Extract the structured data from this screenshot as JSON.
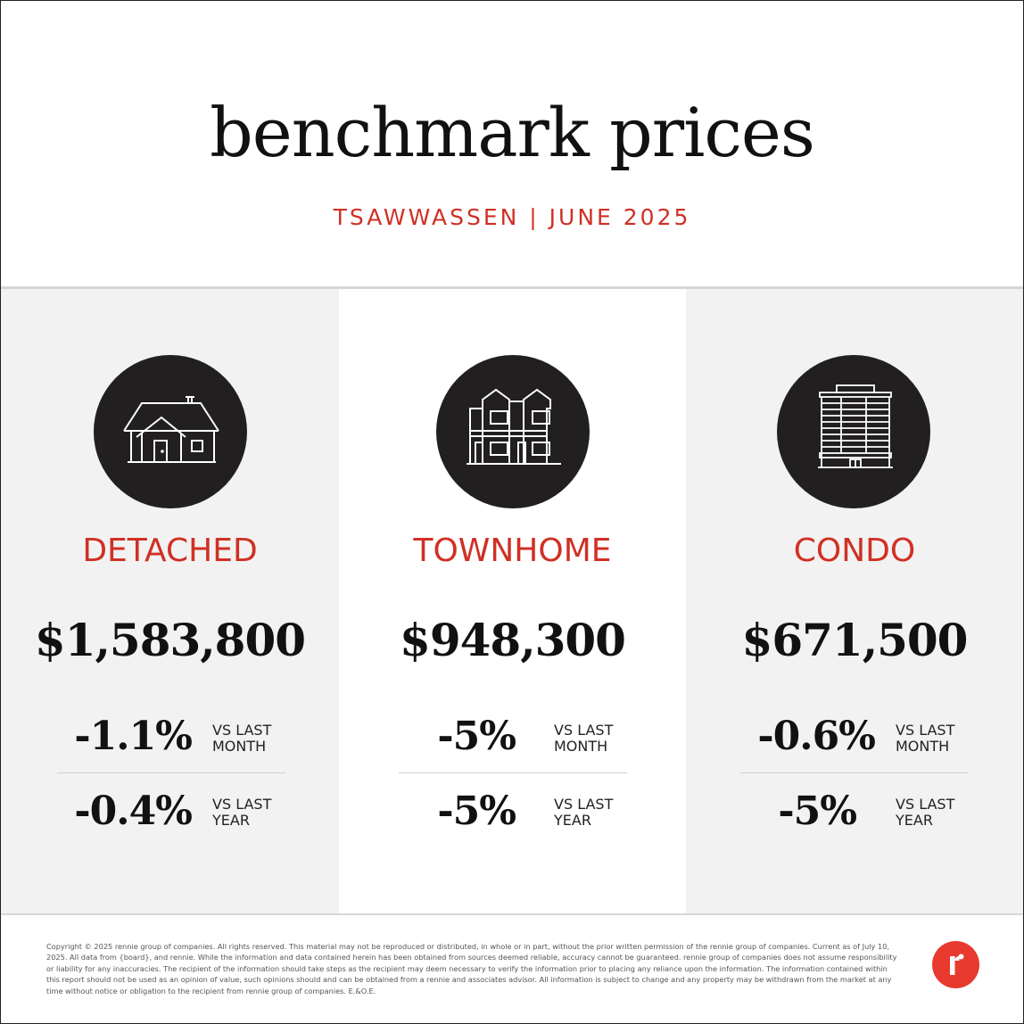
{
  "header": {
    "title": "benchmark prices",
    "subtitle": "TSAWWASSEN | JUNE 2025"
  },
  "panels": [
    {
      "type": "DETACHED",
      "icon": "detached-house-icon",
      "price": "$1,583,800",
      "month_change": "-1.1%",
      "month_label": [
        "VS LAST",
        "MONTH"
      ],
      "year_change": "-0.4%",
      "year_label": [
        "VS LAST",
        "YEAR"
      ]
    },
    {
      "type": "TOWNHOME",
      "icon": "townhome-icon",
      "price": "$948,300",
      "month_change": "-5%",
      "month_label": [
        "VS LAST",
        "MONTH"
      ],
      "year_change": "-5%",
      "year_label": [
        "VS LAST",
        "YEAR"
      ]
    },
    {
      "type": "CONDO",
      "icon": "condo-building-icon",
      "price": "$671,500",
      "month_change": "-0.6%",
      "month_label": [
        "VS LAST",
        "MONTH"
      ],
      "year_change": "-5%",
      "year_label": [
        "VS LAST",
        "YEAR"
      ]
    }
  ],
  "footer": {
    "disclaimer": "Copyright © 2025 rennie group of companies. All rights reserved. This material may not be reproduced or distributed, in whole or in part, without the prior written permission of the rennie group of companies. Current as of July 10, 2025. All data from {board}, and rennie. While the information and data contained herein has been obtained from sources deemed reliable, accuracy cannot be guaranteed. rennie group of companies does not assume responsibility or liability for any inaccuracies. The recipient of the information should take steps as the recipient may deem necessary to verify the information prior to placing any reliance upon the information. The information contained within this report should not be used as an opinion of value, such opinions should and can be obtained from a rennie and associates advisor. All information is subject to change and any property may be withdrawn from the market at any time without notice or obligation to the recipient from rennie group of companies. E.&O.E.",
    "logo_icon": "rennie-logo-icon"
  },
  "colors": {
    "accent": "#d03024",
    "logo": "#e8392e",
    "icon_circle": "#221f20",
    "panel_gray": "#f2f2f2"
  }
}
